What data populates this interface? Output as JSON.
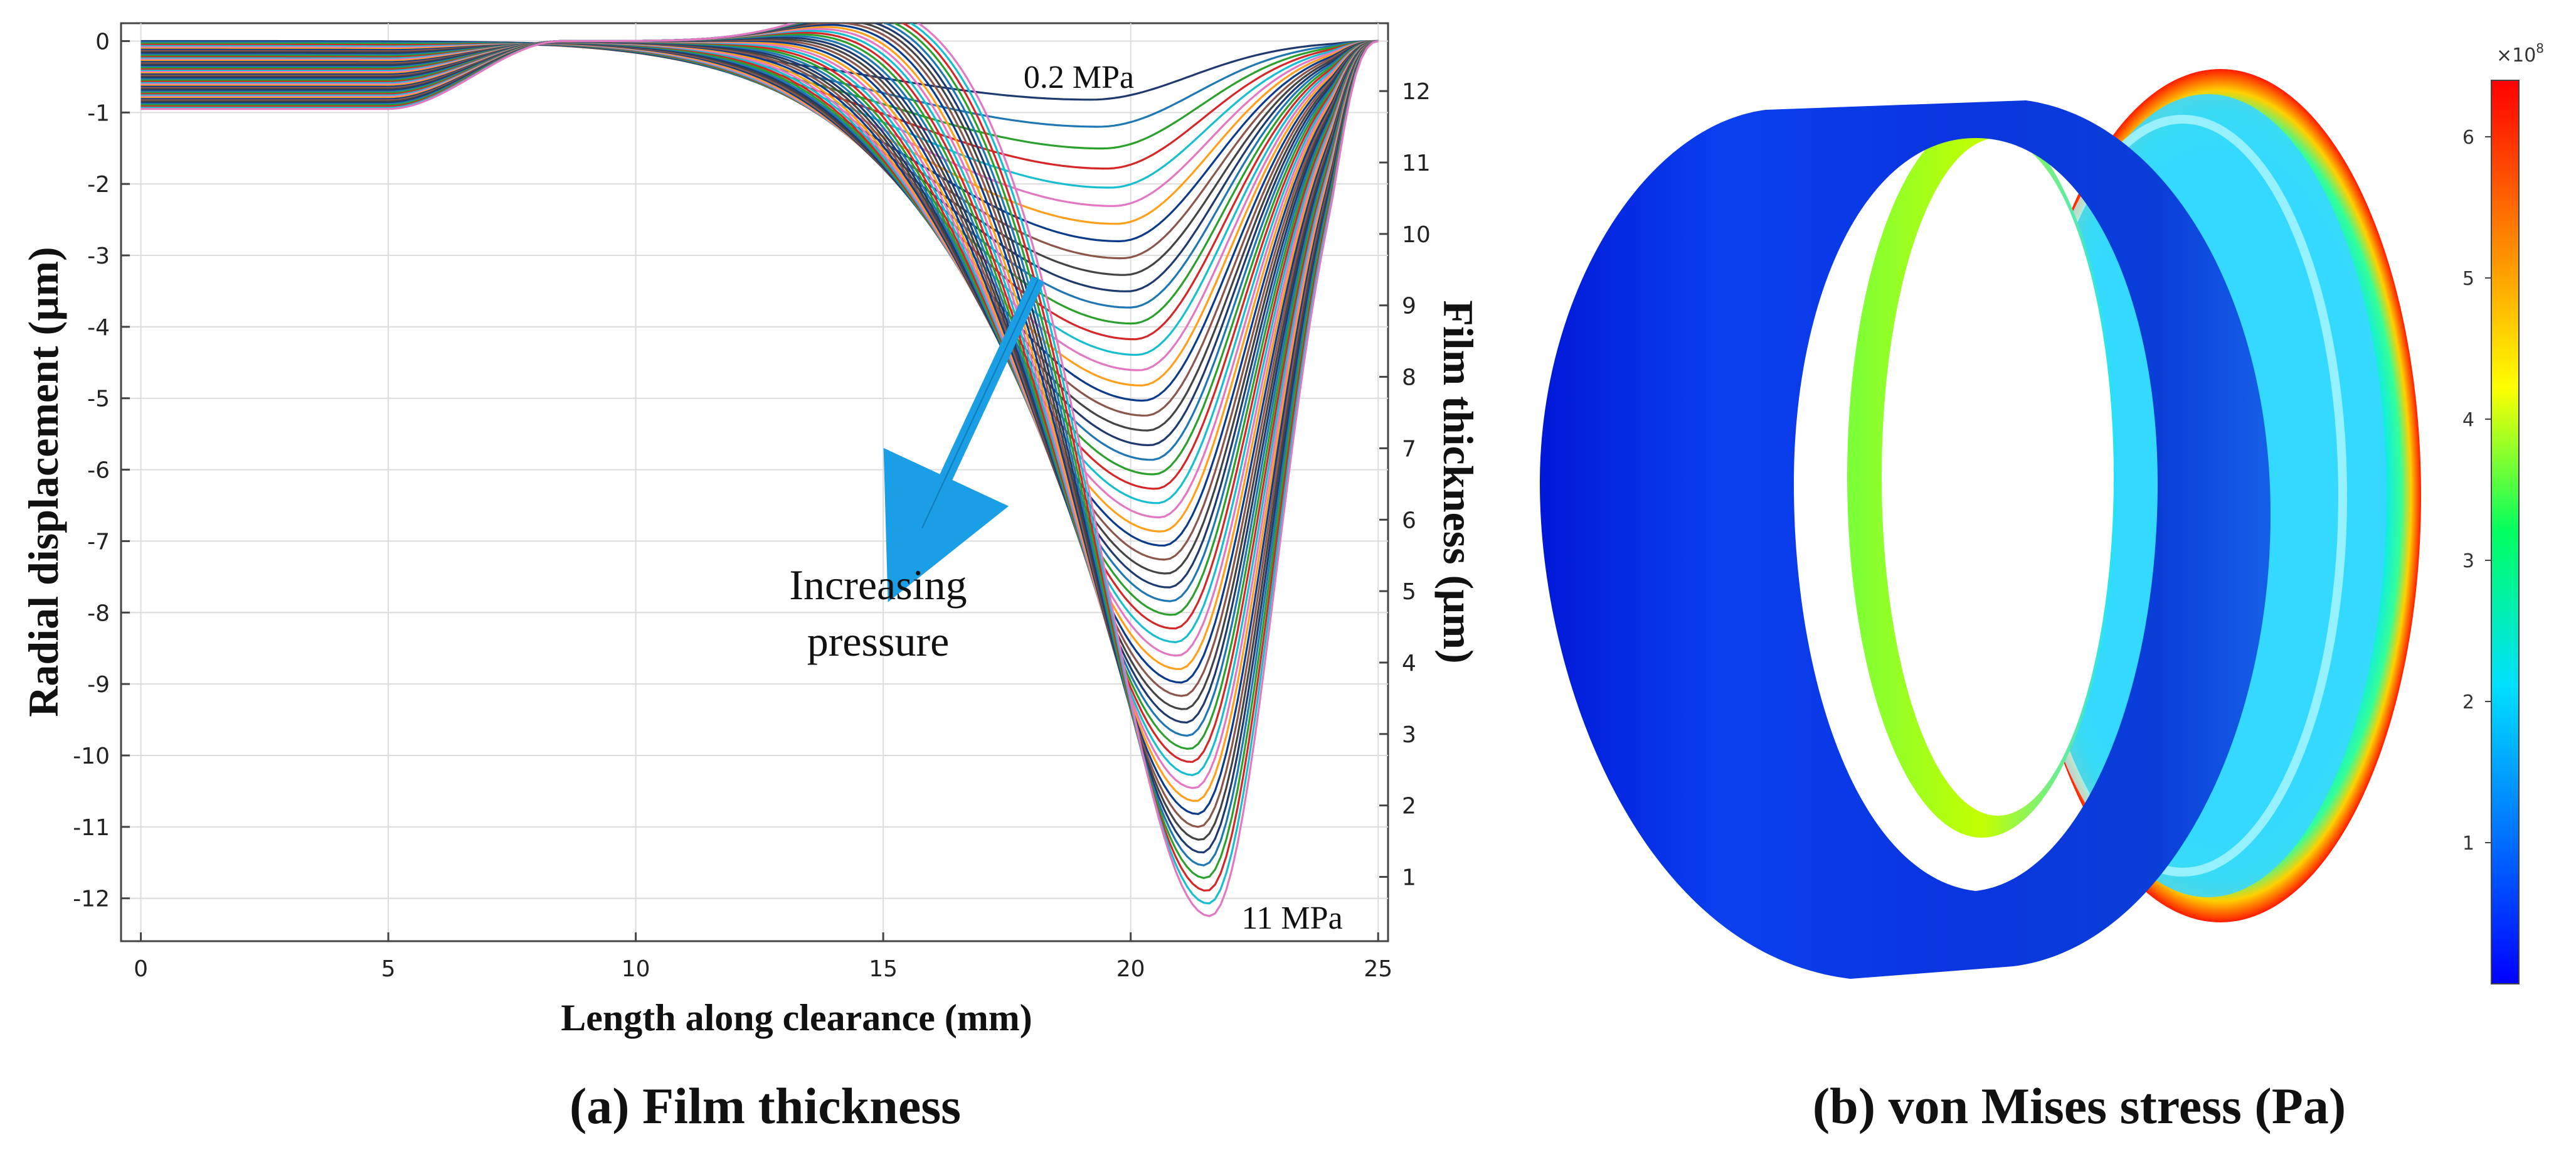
{
  "chart_data": [
    {
      "type": "line",
      "title": "",
      "xlabel": "Length along clearance (mm)",
      "ylabel": "Radial displacement (µm)",
      "y2label": "Film thickness (µm)",
      "xlim": [
        -0.4,
        25.2
      ],
      "ylim": [
        -12.6,
        0.25
      ],
      "y2lim": [
        0.1,
        12.95
      ],
      "x_ticks": [
        "0",
        "5",
        "10",
        "15",
        "20",
        "25"
      ],
      "y_ticks": [
        "0",
        "-1",
        "-2",
        "-3",
        "-4",
        "-5",
        "-6",
        "-7",
        "-8",
        "-9",
        "-10",
        "-11",
        "-12"
      ],
      "y2_ticks": [
        "1",
        "2",
        "3",
        "4",
        "5",
        "6",
        "7",
        "8",
        "9",
        "10",
        "11",
        "12"
      ],
      "grid": true,
      "series_count": 56,
      "pressure_range_mpa": [
        0.2,
        11
      ],
      "series_parameters": {
        "min_depth_range_um": [
          0.82,
          12.25
        ],
        "min_location_range_mm": [
          19.2,
          21.6
        ],
        "colors": [
          "#1f3a6f",
          "#1f77b4",
          "#2ca02c",
          "#d62728",
          "#17becf",
          "#e377c2",
          "#ff9f1c",
          "#0b3c8c",
          "#8c564b",
          "#444444"
        ]
      },
      "annotations": {
        "low_pressure": "0.2 MPa",
        "high_pressure": "11 MPa",
        "arrow_label_line1": "Increasing",
        "arrow_label_line2": "pressure"
      },
      "caption": "(a) Film thickness"
    },
    {
      "type": "heatmap",
      "title": "",
      "colorbar_label": "von Mises stress (Pa)",
      "colorbar_exponent": "×10",
      "colorbar_exponent_power": "8",
      "colorbar_range": [
        0,
        6.4
      ],
      "colorbar_ticks": [
        "1",
        "2",
        "3",
        "4",
        "5",
        "6"
      ],
      "colormap": [
        "#0000ff",
        "#0080ff",
        "#00ffff",
        "#00ff80",
        "#ffff00",
        "#ff8000",
        "#ff0000"
      ],
      "caption": "(b) von Mises stress (Pa)"
    }
  ]
}
